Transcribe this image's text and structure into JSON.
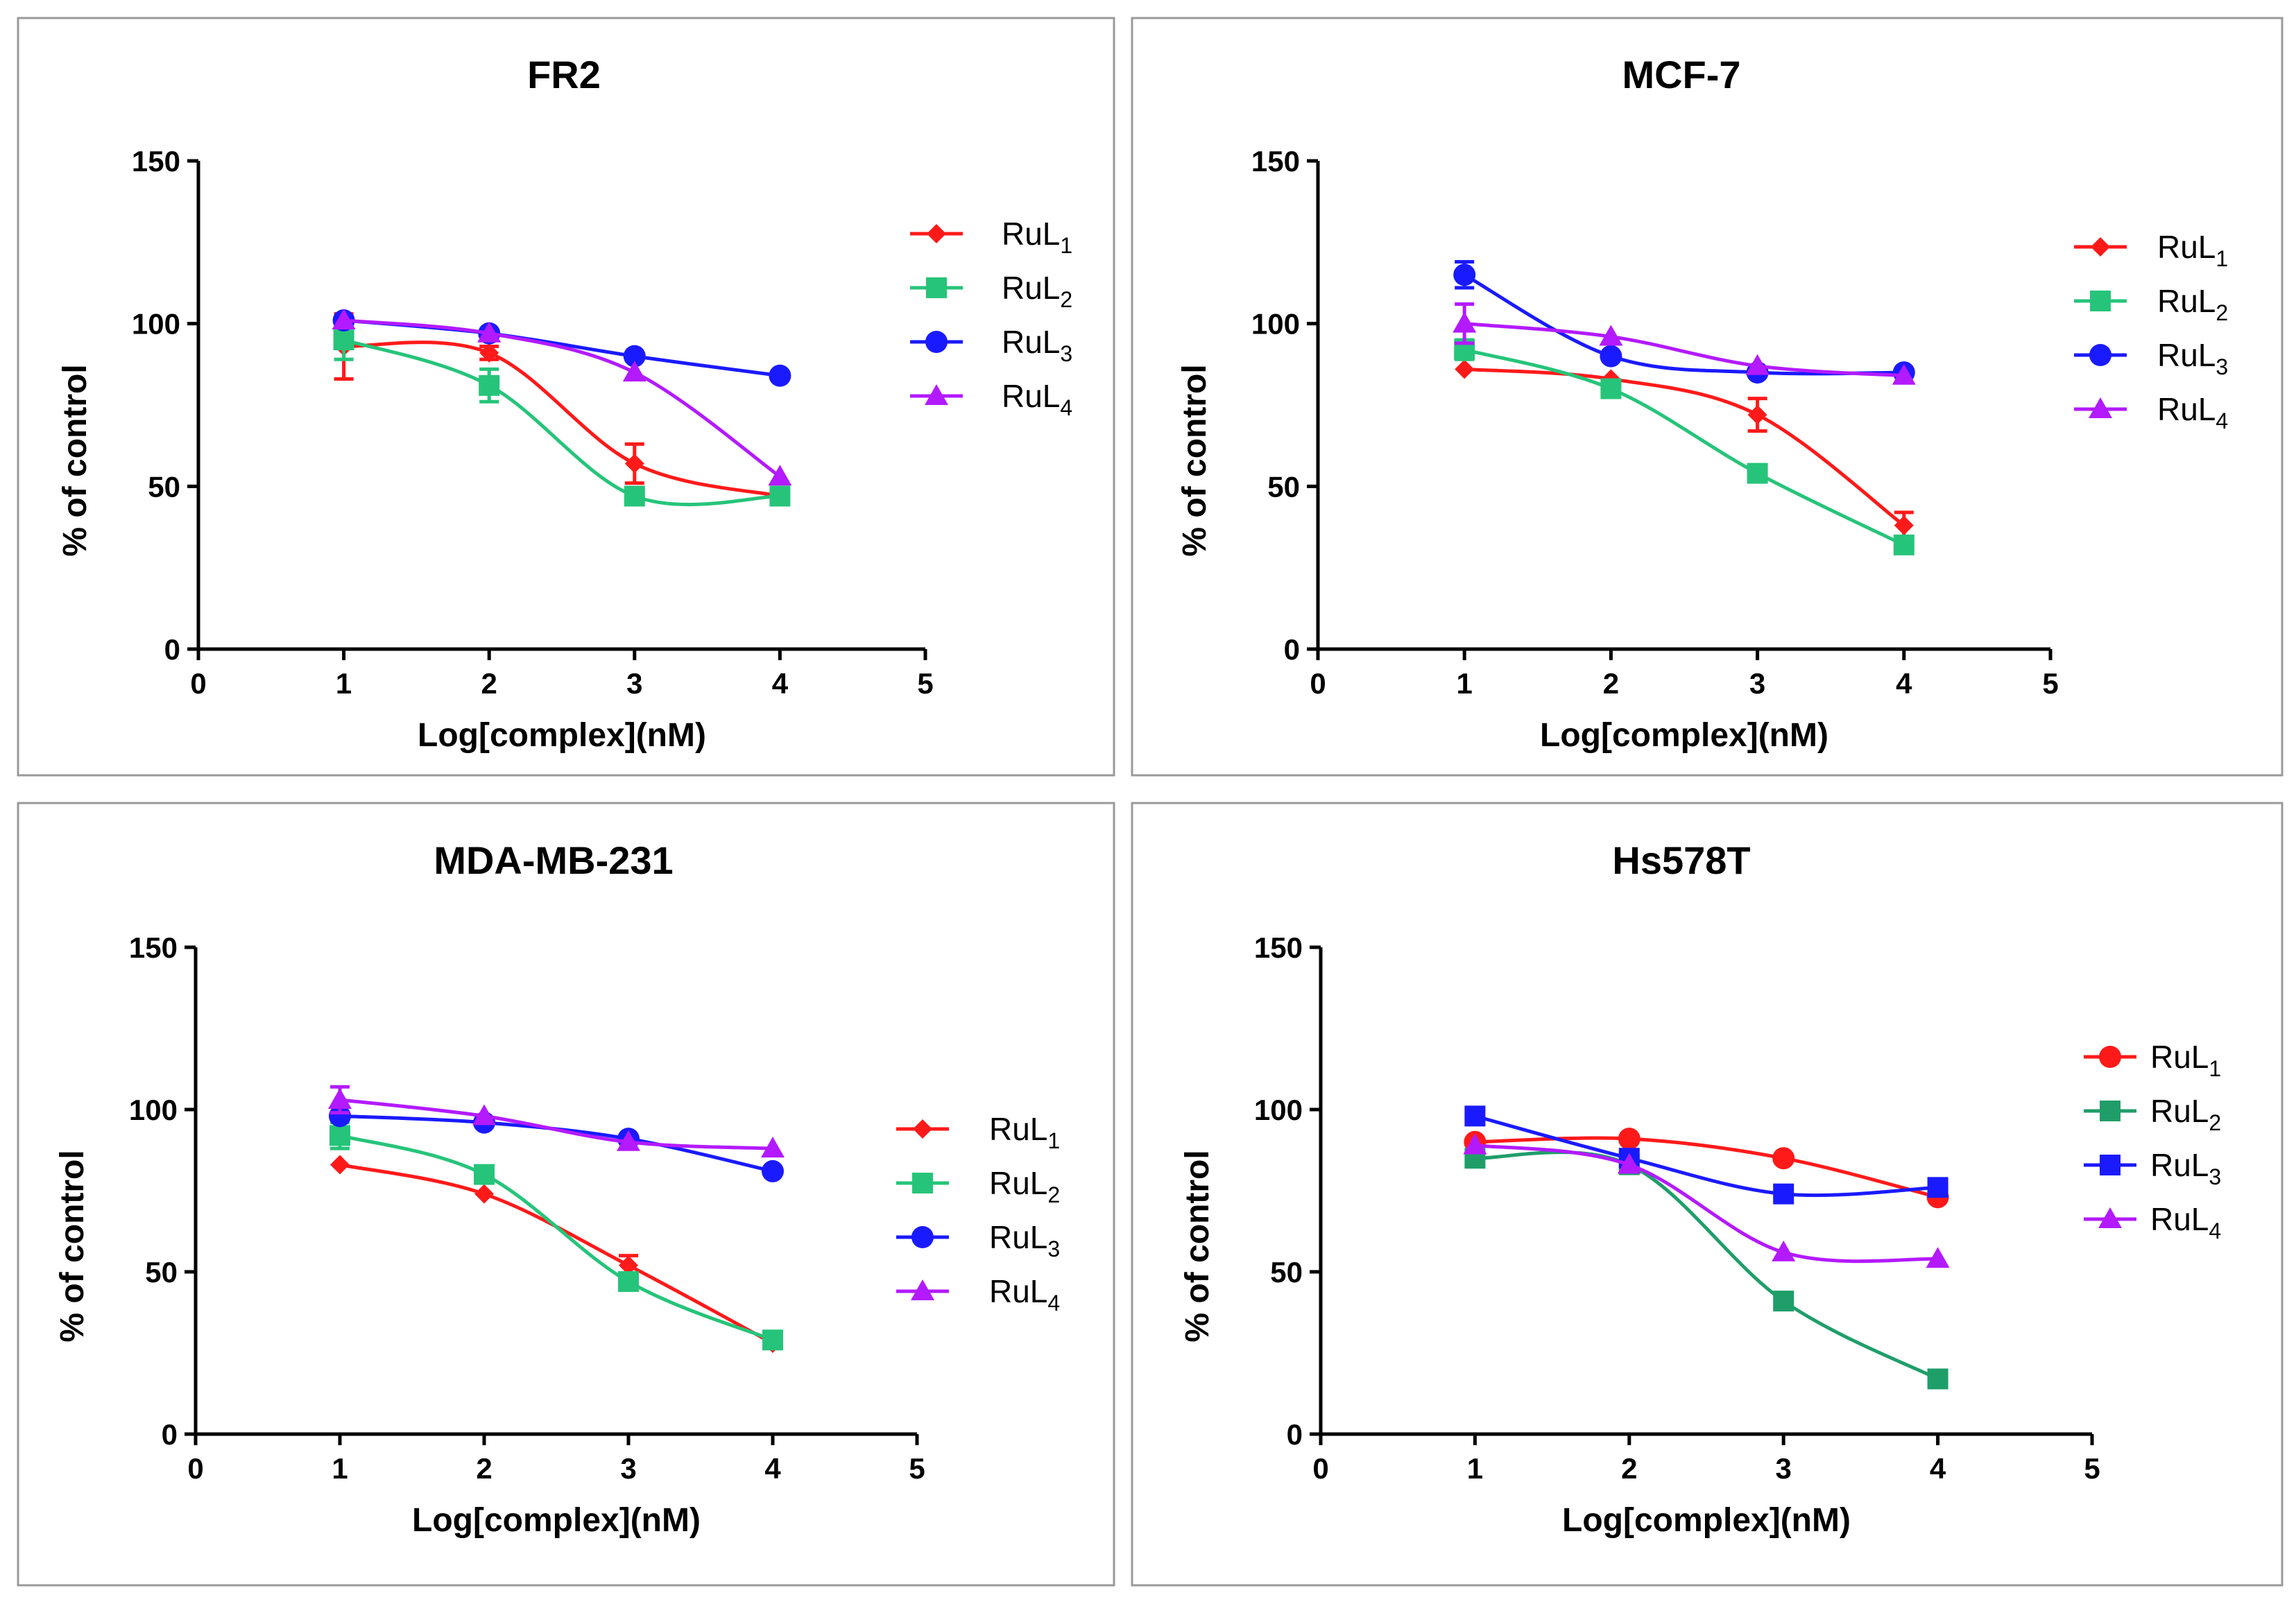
{
  "chart_data": [
    {
      "type": "line",
      "title": "FR2",
      "xlabel": "Log[complex](nM)",
      "ylabel": "% of control",
      "xlim": [
        0,
        5
      ],
      "ylim": [
        0,
        150
      ],
      "xticks": [
        0,
        1,
        2,
        3,
        4,
        5
      ],
      "yticks": [
        0,
        50,
        100,
        150
      ],
      "x": [
        1,
        2,
        3,
        4
      ],
      "series": [
        {
          "name": "RuL",
          "sub": "1",
          "color": "#ff1a1a",
          "marker": "diamond",
          "values": [
            93,
            91,
            57,
            47
          ],
          "errors": [
            10,
            2,
            6,
            1
          ]
        },
        {
          "name": "RuL",
          "sub": "2",
          "color": "#26c47a",
          "marker": "square",
          "values": [
            95,
            81,
            47,
            47
          ],
          "errors": [
            6,
            5,
            1,
            1
          ]
        },
        {
          "name": "RuL",
          "sub": "3",
          "color": "#1a1aff",
          "marker": "circle",
          "values": [
            101,
            97,
            90,
            84
          ],
          "errors": [
            0,
            0,
            0,
            0
          ]
        },
        {
          "name": "RuL",
          "sub": "4",
          "color": "#b31aff",
          "marker": "triangle",
          "values": [
            101,
            97,
            85,
            53
          ],
          "errors": [
            0,
            0,
            0,
            0
          ]
        }
      ]
    },
    {
      "type": "line",
      "title": "MCF-7",
      "xlabel": "Log[complex](nM)",
      "ylabel": "% of control",
      "xlim": [
        0,
        5
      ],
      "ylim": [
        0,
        150
      ],
      "xticks": [
        0,
        1,
        2,
        3,
        4,
        5
      ],
      "yticks": [
        0,
        50,
        100,
        150
      ],
      "x": [
        1,
        2,
        3,
        4
      ],
      "series": [
        {
          "name": "RuL",
          "sub": "1",
          "color": "#ff1a1a",
          "marker": "diamond",
          "values": [
            86,
            83,
            72,
            38
          ],
          "errors": [
            0,
            0,
            5,
            4
          ]
        },
        {
          "name": "RuL",
          "sub": "2",
          "color": "#26c47a",
          "marker": "square",
          "values": [
            92,
            80,
            54,
            32
          ],
          "errors": [
            3,
            0,
            0,
            0
          ]
        },
        {
          "name": "RuL",
          "sub": "3",
          "color": "#1a1aff",
          "marker": "circle",
          "values": [
            115,
            90,
            85,
            85
          ],
          "errors": [
            4,
            0,
            0,
            0
          ]
        },
        {
          "name": "RuL",
          "sub": "4",
          "color": "#b31aff",
          "marker": "triangle",
          "values": [
            100,
            96,
            87,
            84
          ],
          "errors": [
            6,
            0,
            0,
            0
          ]
        }
      ]
    },
    {
      "type": "line",
      "title": "MDA-MB-231",
      "xlabel": "Log[complex](nM)",
      "ylabel": "% of control",
      "xlim": [
        0,
        5
      ],
      "ylim": [
        0,
        150
      ],
      "xticks": [
        0,
        1,
        2,
        3,
        4,
        5
      ],
      "yticks": [
        0,
        50,
        100,
        150
      ],
      "x": [
        1,
        2,
        3,
        4
      ],
      "series": [
        {
          "name": "RuL",
          "sub": "1",
          "color": "#ff1a1a",
          "marker": "diamond",
          "values": [
            83,
            74,
            52,
            28
          ],
          "errors": [
            0,
            0,
            3,
            0
          ]
        },
        {
          "name": "RuL",
          "sub": "2",
          "color": "#26c47a",
          "marker": "square",
          "values": [
            92,
            80,
            47,
            29
          ],
          "errors": [
            4,
            0,
            0,
            0
          ]
        },
        {
          "name": "RuL",
          "sub": "3",
          "color": "#1a1aff",
          "marker": "circle",
          "values": [
            98,
            96,
            91,
            81
          ],
          "errors": [
            0,
            0,
            0,
            0
          ]
        },
        {
          "name": "RuL",
          "sub": "4",
          "color": "#b31aff",
          "marker": "triangle",
          "values": [
            103,
            98,
            90,
            88
          ],
          "errors": [
            4,
            0,
            0,
            0
          ]
        }
      ]
    },
    {
      "type": "line",
      "title": "Hs578T",
      "xlabel": "Log[complex](nM)",
      "ylabel": "% of control",
      "xlim": [
        0,
        5
      ],
      "ylim": [
        0,
        150
      ],
      "xticks": [
        0,
        1,
        2,
        3,
        4,
        5
      ],
      "yticks": [
        0,
        50,
        100,
        150
      ],
      "x": [
        1,
        2,
        3,
        4
      ],
      "series": [
        {
          "name": "RuL",
          "sub": "1",
          "color": "#ff1a1a",
          "marker": "circle",
          "values": [
            90,
            91,
            85,
            73
          ],
          "errors": [
            0,
            0,
            0,
            0
          ]
        },
        {
          "name": "RuL",
          "sub": "2",
          "color": "#1f9e6a",
          "marker": "square",
          "values": [
            85,
            83,
            41,
            17
          ],
          "errors": [
            0,
            0,
            0,
            0
          ]
        },
        {
          "name": "RuL",
          "sub": "3",
          "color": "#1a1aff",
          "marker": "square",
          "values": [
            98,
            85,
            74,
            76
          ],
          "errors": [
            0,
            0,
            0,
            0
          ]
        },
        {
          "name": "RuL",
          "sub": "4",
          "color": "#b31aff",
          "marker": "triangle",
          "values": [
            89,
            83,
            56,
            54
          ],
          "errors": [
            0,
            0,
            0,
            0
          ]
        }
      ]
    }
  ]
}
